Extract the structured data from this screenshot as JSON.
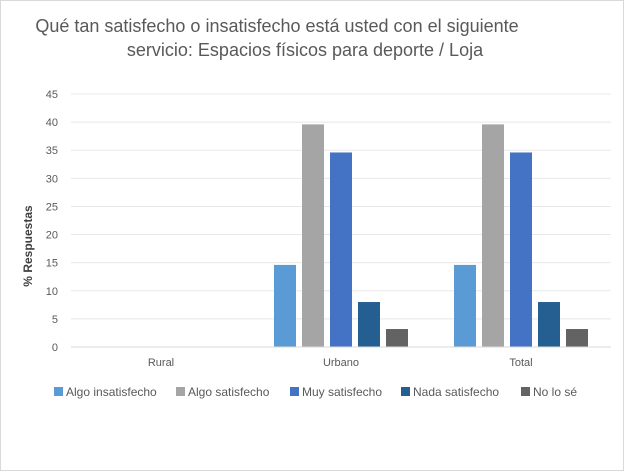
{
  "chart_data": {
    "type": "bar",
    "title_lines": [
      "Qué tan satisfecho o insatisfecho está usted con el siguiente",
      "servicio: Espacios físicos para deporte / Loja"
    ],
    "xlabel": "",
    "ylabel": "% Respuestas",
    "ylim": [
      0,
      45
    ],
    "yticks": [
      "0",
      "5",
      "10",
      "15",
      "20",
      "25",
      "30",
      "35",
      "40",
      "45"
    ],
    "grid": true,
    "legend_position": "bottom",
    "categories": [
      "Rural",
      "Urbano",
      "Total"
    ],
    "series": [
      {
        "name": "Algo insatisfecho",
        "color": "#5b9bd5",
        "values": [
          0,
          14.6,
          14.6
        ]
      },
      {
        "name": "Algo satisfecho",
        "color": "#a5a5a5",
        "values": [
          0,
          39.6,
          39.6
        ]
      },
      {
        "name": "Muy satisfecho",
        "color": "#4472c4",
        "values": [
          0,
          34.6,
          34.6
        ]
      },
      {
        "name": "Nada satisfecho",
        "color": "#255e91",
        "values": [
          0,
          8.0,
          8.0
        ]
      },
      {
        "name": "No lo sé",
        "color": "#636363",
        "values": [
          0,
          3.2,
          3.2
        ]
      }
    ]
  }
}
